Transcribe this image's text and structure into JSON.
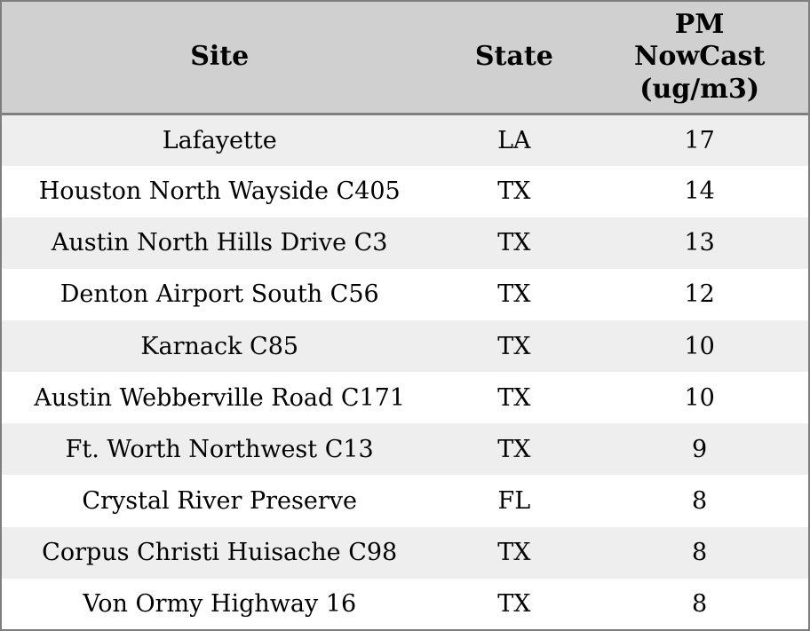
{
  "chart_data": {
    "type": "table",
    "title": "",
    "columns": [
      "Site",
      "State",
      "PM NowCast (ug/m3)"
    ],
    "rows": [
      [
        "Lafayette",
        "LA",
        17
      ],
      [
        "Houston North Wayside C405",
        "TX",
        14
      ],
      [
        "Austin North Hills Drive C3",
        "TX",
        13
      ],
      [
        "Denton Airport South C56",
        "TX",
        12
      ],
      [
        "Karnack C85",
        "TX",
        10
      ],
      [
        "Austin Webberville Road C171",
        "TX",
        10
      ],
      [
        "Ft. Worth Northwest C13",
        "TX",
        9
      ],
      [
        "Crystal River Preserve",
        "FL",
        8
      ],
      [
        "Corpus Christi Huisache C98",
        "TX",
        8
      ],
      [
        "Von Ormy Highway 16",
        "TX",
        8
      ]
    ]
  },
  "table": {
    "columns": [
      {
        "label": "Site"
      },
      {
        "label": "State"
      },
      {
        "label": "PM NowCast (ug/m3)",
        "lines": [
          "PM",
          "NowCast",
          "(ug/m3)"
        ]
      }
    ],
    "rows": [
      {
        "site": "Lafayette",
        "state": "LA",
        "pm_nowcast": "17"
      },
      {
        "site": "Houston North Wayside C405",
        "state": "TX",
        "pm_nowcast": "14"
      },
      {
        "site": "Austin North Hills Drive C3",
        "state": "TX",
        "pm_nowcast": "13"
      },
      {
        "site": "Denton Airport South C56",
        "state": "TX",
        "pm_nowcast": "12"
      },
      {
        "site": "Karnack C85",
        "state": "TX",
        "pm_nowcast": "10"
      },
      {
        "site": "Austin Webberville Road C171",
        "state": "TX",
        "pm_nowcast": "10"
      },
      {
        "site": "Ft. Worth Northwest C13",
        "state": "TX",
        "pm_nowcast": "9"
      },
      {
        "site": "Crystal River Preserve",
        "state": "FL",
        "pm_nowcast": "8"
      },
      {
        "site": "Corpus Christi Huisache C98",
        "state": "TX",
        "pm_nowcast": "8"
      },
      {
        "site": "Von Ormy Highway 16",
        "state": "TX",
        "pm_nowcast": "8"
      }
    ]
  },
  "colors": {
    "header_background": "#d0d0d0",
    "row_alternate": "#eeeeee",
    "row_base": "#ffffff",
    "outer_border": "#7e7e7e",
    "header_divider": "#808080",
    "text": "#000000"
  }
}
